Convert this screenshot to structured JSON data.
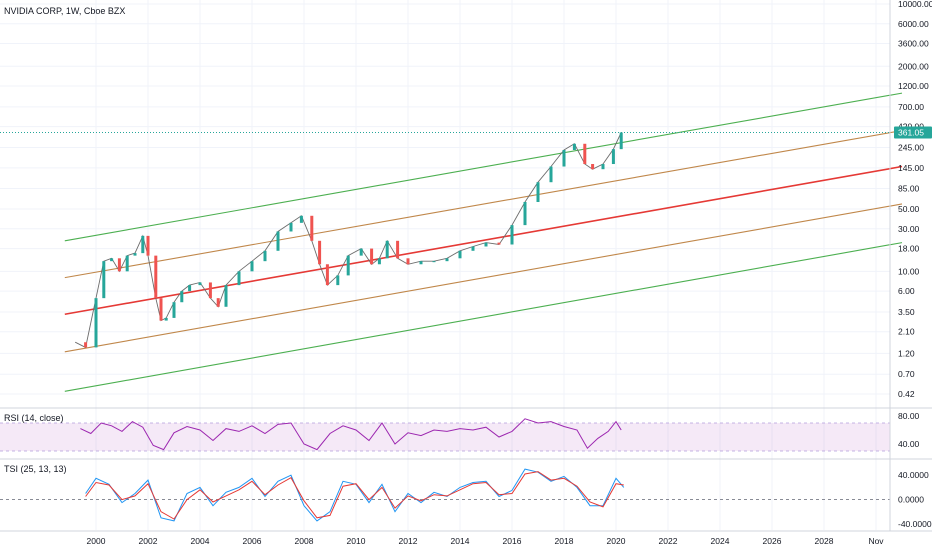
{
  "header": {
    "symbol_title": "NVIDIA CORP, 1W, Cboe BZX"
  },
  "price_badge": {
    "label": "361.05",
    "color": "#26a69a"
  },
  "colors": {
    "grid": "#f0f3fa",
    "up_candle": "#26a69a",
    "down_candle": "#ef5350",
    "channel_outer": "#4caf50",
    "channel_inner": "#c0874a",
    "channel_mid": "#e53935",
    "last_price_line": "#26a69a",
    "rsi_line": "#9c27b0",
    "rsi_band": "rgba(156,39,176,0.10)",
    "tsi_fast": "#2196f3",
    "tsi_slow": "#e53935"
  },
  "chart_data": [
    {
      "type": "line",
      "title": "NVIDIA CORP, 1W, Cboe BZX",
      "scale": "log",
      "x_ticks": [
        "2000",
        "2002",
        "2004",
        "2006",
        "2008",
        "2010",
        "2012",
        "2014",
        "2016",
        "2018",
        "2020",
        "2022",
        "2024",
        "2026",
        "2028",
        "Nov"
      ],
      "y_ticks": [
        "10000.00",
        "6000.00",
        "3600.00",
        "2000.00",
        "1200.00",
        "700.00",
        "420.00",
        "245.00",
        "145.00",
        "85.00",
        "50.00",
        "30.00",
        "18.00",
        "10.00",
        "6.00",
        "3.50",
        "2.10",
        "1.20",
        "0.70",
        "0.42"
      ],
      "last_price": 361.05,
      "x": [
        1999.2,
        1999.6,
        2000.0,
        2000.3,
        2000.6,
        2000.9,
        2001.2,
        2001.5,
        2001.8,
        2002.0,
        2002.3,
        2002.5,
        2002.7,
        2003.0,
        2003.3,
        2003.6,
        2004.0,
        2004.4,
        2004.7,
        2005.0,
        2005.5,
        2006.0,
        2006.5,
        2007.0,
        2007.5,
        2007.9,
        2008.3,
        2008.6,
        2008.9,
        2009.3,
        2009.7,
        2010.2,
        2010.6,
        2010.9,
        2011.2,
        2011.6,
        2012.0,
        2012.5,
        2013.0,
        2013.5,
        2014.0,
        2014.5,
        2015.0,
        2015.5,
        2016.0,
        2016.5,
        2017.0,
        2017.5,
        2018.0,
        2018.4,
        2018.8,
        2019.1,
        2019.5,
        2019.9,
        2020.2
      ],
      "values": [
        1.6,
        1.4,
        5.0,
        13.0,
        14.0,
        10.0,
        15.0,
        16.0,
        25.0,
        15.0,
        5.0,
        2.8,
        3.0,
        4.5,
        6.0,
        7.0,
        7.5,
        5.0,
        4.0,
        7.0,
        10.0,
        13.0,
        17.0,
        28.0,
        35.0,
        42.0,
        22.0,
        12.0,
        7.0,
        9.0,
        15.0,
        18.0,
        12.0,
        14.0,
        22.0,
        14.0,
        12.0,
        13.0,
        13.0,
        14.0,
        17.0,
        19.0,
        21.0,
        20.0,
        33.0,
        60.0,
        100.0,
        150.0,
        230.0,
        270.0,
        160.0,
        140.0,
        160.0,
        235.0,
        361.05
      ],
      "channels": [
        {
          "name": "outer-upper",
          "start": [
            1998.8,
            22
          ],
          "end": [
            2031.0,
            1000
          ]
        },
        {
          "name": "inner-upper",
          "start": [
            1998.8,
            8.5
          ],
          "end": [
            2031.0,
            380
          ]
        },
        {
          "name": "middle",
          "start": [
            1998.8,
            3.3
          ],
          "end": [
            2031.0,
            150
          ]
        },
        {
          "name": "inner-lower",
          "start": [
            1998.8,
            1.25
          ],
          "end": [
            2031.0,
            57
          ]
        },
        {
          "name": "outer-lower",
          "start": [
            1998.8,
            0.45
          ],
          "end": [
            2031.0,
            21
          ]
        }
      ]
    },
    {
      "type": "line",
      "title": "RSI (14, close)",
      "y_ticks": [
        "80.00",
        "40.00"
      ],
      "band": [
        30,
        70
      ],
      "ylim": [
        20,
        90
      ],
      "x": [
        1999.4,
        1999.8,
        2000.2,
        2000.6,
        2001.0,
        2001.4,
        2001.8,
        2002.2,
        2002.6,
        2003.0,
        2003.5,
        2004.0,
        2004.5,
        2005.0,
        2005.5,
        2006.0,
        2006.5,
        2007.0,
        2007.5,
        2008.0,
        2008.5,
        2009.0,
        2009.5,
        2010.0,
        2010.5,
        2011.0,
        2011.5,
        2012.0,
        2012.5,
        2013.0,
        2013.5,
        2014.0,
        2014.5,
        2015.0,
        2015.5,
        2016.0,
        2016.5,
        2017.0,
        2017.5,
        2018.0,
        2018.5,
        2018.9,
        2019.3,
        2019.7,
        2020.0,
        2020.2
      ],
      "values": [
        62,
        55,
        70,
        66,
        58,
        72,
        64,
        38,
        32,
        56,
        65,
        60,
        45,
        62,
        58,
        66,
        55,
        68,
        70,
        40,
        32,
        55,
        66,
        60,
        45,
        70,
        40,
        56,
        52,
        60,
        58,
        62,
        60,
        64,
        50,
        58,
        76,
        70,
        72,
        65,
        60,
        34,
        48,
        58,
        72,
        60
      ]
    },
    {
      "type": "line",
      "title": "TSI (25, 13, 13)",
      "y_ticks": [
        "40.0000",
        "0.0000",
        "-40.0000"
      ],
      "ylim": [
        -50,
        65
      ],
      "x": [
        1999.6,
        2000.0,
        2000.5,
        2001.0,
        2001.5,
        2002.0,
        2002.5,
        2003.0,
        2003.5,
        2004.0,
        2004.5,
        2005.0,
        2005.5,
        2006.0,
        2006.5,
        2007.0,
        2007.5,
        2008.0,
        2008.5,
        2009.0,
        2009.5,
        2010.0,
        2010.5,
        2011.0,
        2011.5,
        2012.0,
        2012.5,
        2013.0,
        2013.5,
        2014.0,
        2014.5,
        2015.0,
        2015.5,
        2016.0,
        2016.5,
        2017.0,
        2017.5,
        2018.0,
        2018.5,
        2019.0,
        2019.5,
        2020.0,
        2020.3
      ],
      "series": [
        {
          "name": "TSI",
          "values": [
            10,
            35,
            25,
            -5,
            10,
            32,
            -30,
            -35,
            10,
            20,
            -10,
            12,
            20,
            35,
            5,
            30,
            40,
            -10,
            -35,
            -20,
            30,
            25,
            -5,
            25,
            -20,
            10,
            -5,
            12,
            5,
            20,
            28,
            30,
            5,
            15,
            50,
            45,
            30,
            38,
            20,
            -10,
            -10,
            35,
            20
          ]
        },
        {
          "name": "Signal",
          "values": [
            5,
            28,
            24,
            0,
            6,
            26,
            -20,
            -32,
            0,
            16,
            -4,
            6,
            16,
            30,
            8,
            24,
            36,
            -2,
            -30,
            -26,
            22,
            26,
            0,
            20,
            -14,
            6,
            -2,
            8,
            6,
            16,
            26,
            28,
            8,
            10,
            42,
            46,
            32,
            35,
            22,
            -4,
            -12,
            26,
            24
          ]
        }
      ]
    }
  ],
  "panes": {
    "rsi_title": "RSI (14, close)",
    "tsi_title": "TSI (25, 13, 13)"
  }
}
